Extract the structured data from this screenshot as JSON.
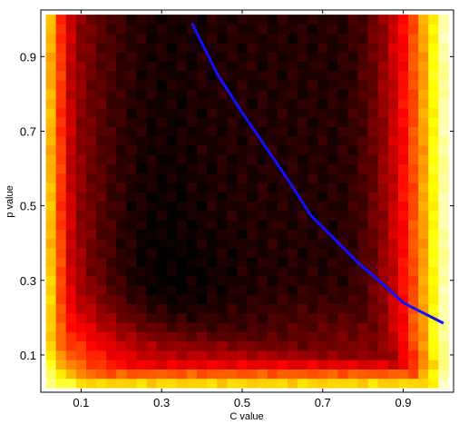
{
  "chart_data": {
    "type": "heatmap",
    "title": "",
    "xlabel": "C value",
    "ylabel": "p value",
    "xlim": [
      0.0,
      1.025
    ],
    "ylim": [
      0.0,
      1.025
    ],
    "xticks": [
      0.1,
      0.3,
      0.5,
      0.7,
      0.9
    ],
    "yticks": [
      0.1,
      0.3,
      0.5,
      0.7,
      0.9
    ],
    "xtick_labels": [
      "0.1",
      "0.3",
      "0.5",
      "0.7",
      "0.9"
    ],
    "ytick_labels": [
      "0.1",
      "0.3",
      "0.5",
      "0.7",
      "0.9"
    ],
    "grid": {
      "x_range": [
        0.025,
        1.0
      ],
      "y_range": [
        0.025,
        1.0
      ],
      "nx": 40,
      "ny": 40
    },
    "colormap": "hot",
    "colorbar": false,
    "curve": {
      "color": "#1010ff",
      "x": [
        0.375,
        0.44,
        0.5,
        0.56,
        0.62,
        0.67,
        0.73,
        0.79,
        0.85,
        0.9,
        1.0
      ],
      "y": [
        0.99,
        0.85,
        0.75,
        0.655,
        0.56,
        0.475,
        0.41,
        0.345,
        0.29,
        0.24,
        0.185
      ]
    }
  }
}
